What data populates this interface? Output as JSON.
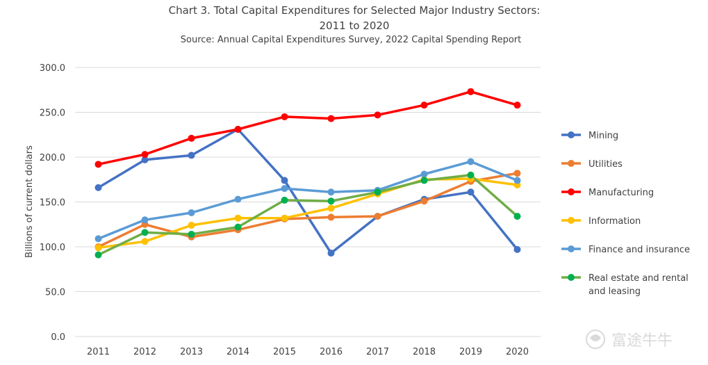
{
  "chart_data": {
    "type": "line",
    "title": "Chart 3. Total Capital Expenditures for Selected Major Industry Sectors:",
    "title_line2": "2011 to 2020",
    "subtitle": "Source: Annual Capital Expenditures Survey, 2022 Capital Spending Report",
    "xlabel": "",
    "ylabel": "Billions of current dollars",
    "x": [
      "2011",
      "2012",
      "2013",
      "2014",
      "2015",
      "2016",
      "2017",
      "2018",
      "2019",
      "2020"
    ],
    "ylim": [
      0,
      300
    ],
    "yticks": [
      "0.0",
      "50.0",
      "100.0",
      "150.0",
      "200.0",
      "250.0",
      "300.0"
    ],
    "grid": true,
    "legend_position": "right",
    "series": [
      {
        "name": "Mining",
        "color": "#4472c4",
        "values": [
          166,
          197,
          202,
          231,
          174,
          93,
          134,
          153,
          161,
          97
        ]
      },
      {
        "name": "Utilities",
        "color": "#ed7d31",
        "values": [
          100,
          125,
          111,
          119,
          131,
          133,
          134,
          151,
          173,
          182
        ]
      },
      {
        "name": "Manufacturing",
        "color": "#ff0000",
        "values": [
          192,
          203,
          221,
          231,
          245,
          243,
          247,
          258,
          273,
          258
        ]
      },
      {
        "name": "Information",
        "color": "#ffc000",
        "values": [
          99,
          106,
          124,
          132,
          132,
          143,
          159,
          175,
          176,
          169
        ]
      },
      {
        "name": "Finance and insurance",
        "color": "#5b9bd5",
        "values": [
          109,
          130,
          138,
          153,
          165,
          161,
          163,
          181,
          195,
          174
        ]
      },
      {
        "name": "Real estate and rental and leasing",
        "color": "#70ad47",
        "marker_color": "#00b050",
        "values": [
          91,
          116,
          114,
          122,
          152,
          151,
          161,
          174,
          180,
          134
        ]
      }
    ]
  },
  "watermark": {
    "text": "富途牛牛"
  }
}
